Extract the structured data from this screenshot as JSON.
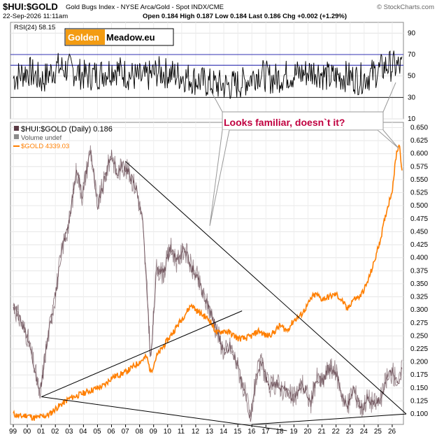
{
  "header": {
    "symbol": "$HUI:$GOLD",
    "description": "Gold Bugs Index - NYSE Arca/Gold - Spot INDX/CME",
    "credit": "© StockCharts.com",
    "date": "22-Sep-2026 11:11am",
    "quote": "Open 0.184  High 0.187  Low 0.184  Last 0.186  Chg +0.002 (+1.29%)"
  },
  "logo": {
    "part1": "Golden",
    "part2": "Meadow.eu"
  },
  "annotation": "Looks familiar, doesn`t it?",
  "colors": {
    "hui": "#5a3a44",
    "gold": "#ff7f00",
    "rsi": "#000000",
    "ref_line": "#3030b0",
    "trend": "#000000"
  },
  "chart_data": [
    {
      "type": "line",
      "panel": "RSI",
      "legend": "RSI(24) 58.15",
      "ylim": [
        10,
        100
      ],
      "ticks": [
        10,
        30,
        50,
        70,
        90
      ],
      "ref_levels": [
        30,
        60
      ],
      "x_years": [
        1999,
        2000,
        2001,
        2002,
        2003,
        2004,
        2005,
        2006,
        2007,
        2008,
        2009,
        2010,
        2011,
        2012,
        2013,
        2014,
        2015,
        2016,
        2017,
        2018,
        2019,
        2020,
        2021,
        2022,
        2023,
        2024,
        2025,
        2026
      ],
      "series": [
        {
          "name": "RSI(24)",
          "values": [
            48,
            55,
            46,
            58,
            56,
            50,
            52,
            57,
            51,
            47,
            54,
            52,
            49,
            45,
            42,
            41,
            44,
            53,
            47,
            51,
            52,
            55,
            48,
            50,
            47,
            52,
            60,
            58
          ]
        }
      ]
    },
    {
      "type": "line",
      "panel": "Main",
      "legend": [
        "$HUI:$GOLD (Daily) 0.186",
        "Volume undef",
        "$GOLD 4339.03"
      ],
      "y_ticks": [
        "0.100",
        "0.125",
        "0.150",
        "0.175",
        "0.200",
        "0.225",
        "0.250",
        "0.275",
        "0.300",
        "0.325",
        "0.350",
        "0.375",
        "0.400",
        "0.425",
        "0.450",
        "0.475",
        "0.500",
        "0.525",
        "0.550",
        "0.575",
        "0.600",
        "0.625",
        "0.650"
      ],
      "x_labels": [
        "99",
        "00",
        "01",
        "02",
        "03",
        "04",
        "05",
        "06",
        "07",
        "08",
        "09",
        "10",
        "11",
        "12",
        "13",
        "14",
        "15",
        "16",
        "17",
        "18",
        "19",
        "20",
        "21",
        "22",
        "23",
        "24",
        "25",
        "26"
      ],
      "series": [
        {
          "name": "$HUI:$GOLD",
          "x": [
            1999.0,
            1999.5,
            2000.0,
            2000.5,
            2000.9,
            2001.3,
            2002.0,
            2002.5,
            2003.0,
            2003.5,
            2003.9,
            2004.5,
            2005.0,
            2005.5,
            2006.0,
            2006.4,
            2006.8,
            2007.3,
            2007.8,
            2008.2,
            2008.5,
            2008.8,
            2009.2,
            2009.7,
            2010.2,
            2010.7,
            2011.2,
            2011.7,
            2012.0,
            2012.5,
            2013.0,
            2013.5,
            2014.0,
            2014.5,
            2015.0,
            2015.5,
            2015.9,
            2016.3,
            2016.7,
            2017.2,
            2017.8,
            2018.5,
            2019.0,
            2019.6,
            2020.2,
            2020.6,
            2021.0,
            2021.5,
            2022.0,
            2022.4,
            2022.8,
            2023.2,
            2023.8,
            2024.2,
            2024.8,
            2025.2,
            2025.6,
            2026.0,
            2026.5,
            2026.7
          ],
          "y": [
            0.31,
            0.28,
            0.25,
            0.19,
            0.135,
            0.22,
            0.33,
            0.42,
            0.47,
            0.57,
            0.52,
            0.61,
            0.5,
            0.55,
            0.6,
            0.56,
            0.58,
            0.56,
            0.53,
            0.47,
            0.35,
            0.2,
            0.38,
            0.37,
            0.42,
            0.39,
            0.42,
            0.38,
            0.37,
            0.33,
            0.3,
            0.26,
            0.22,
            0.23,
            0.19,
            0.14,
            0.09,
            0.17,
            0.2,
            0.15,
            0.16,
            0.14,
            0.13,
            0.16,
            0.12,
            0.17,
            0.16,
            0.19,
            0.18,
            0.14,
            0.11,
            0.15,
            0.11,
            0.13,
            0.12,
            0.13,
            0.17,
            0.18,
            0.16,
            0.186
          ]
        },
        {
          "name": "$GOLD",
          "x": [
            1999.0,
            1999.5,
            2000.0,
            2000.5,
            2001.0,
            2001.5,
            2002.0,
            2002.5,
            2003.0,
            2003.5,
            2004.0,
            2004.5,
            2005.0,
            2005.5,
            2006.0,
            2006.5,
            2007.0,
            2007.5,
            2008.0,
            2008.5,
            2008.8,
            2009.2,
            2009.7,
            2010.2,
            2010.7,
            2011.2,
            2011.7,
            2012.0,
            2012.5,
            2013.0,
            2013.5,
            2014.0,
            2014.5,
            2015.0,
            2015.5,
            2016.0,
            2016.5,
            2017.0,
            2017.5,
            2018.0,
            2018.5,
            2019.0,
            2019.5,
            2020.0,
            2020.3,
            2020.6,
            2021.0,
            2021.5,
            2022.0,
            2022.5,
            2022.8,
            2023.2,
            2023.7,
            2024.2,
            2024.7,
            2025.2,
            2025.6,
            2026.0,
            2026.3,
            2026.5,
            2026.7
          ],
          "y": [
            0.1,
            0.095,
            0.098,
            0.092,
            0.095,
            0.098,
            0.11,
            0.12,
            0.13,
            0.135,
            0.14,
            0.145,
            0.15,
            0.155,
            0.17,
            0.175,
            0.18,
            0.19,
            0.2,
            0.21,
            0.18,
            0.21,
            0.23,
            0.25,
            0.27,
            0.29,
            0.31,
            0.3,
            0.29,
            0.28,
            0.255,
            0.26,
            0.255,
            0.245,
            0.245,
            0.25,
            0.26,
            0.25,
            0.255,
            0.27,
            0.26,
            0.28,
            0.29,
            0.31,
            0.325,
            0.33,
            0.32,
            0.325,
            0.33,
            0.315,
            0.3,
            0.32,
            0.325,
            0.35,
            0.39,
            0.44,
            0.49,
            0.53,
            0.6,
            0.62,
            0.57
          ]
        }
      ]
    }
  ]
}
